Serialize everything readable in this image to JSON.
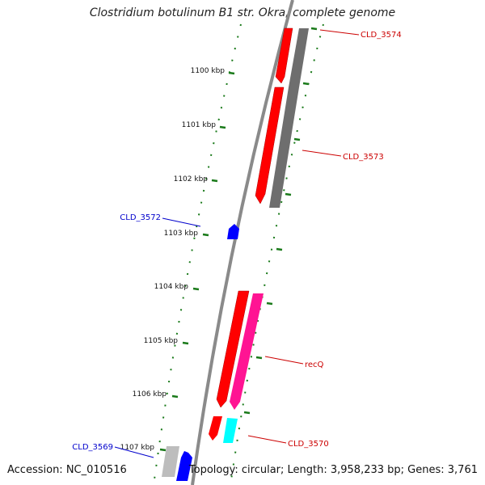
{
  "title": "Clostridium botulinum B1 str. Okra, complete genome",
  "accession": "Accession: NC_010516",
  "summary": "Topology: circular; Length: 3,958,233 bp; Genes: 3,761",
  "ticks": [
    "1100 kbp",
    "1101 kbp",
    "1102 kbp",
    "1103 kbp",
    "1104 kbp",
    "1105 kbp",
    "1106 kbp",
    "1107 kbp"
  ],
  "genes": [
    {
      "label": "CLD_3574",
      "color": "#cc0000"
    },
    {
      "label": "CLD_3573",
      "color": "#cc0000"
    },
    {
      "label": "CLD_3572",
      "color": "#0000cc"
    },
    {
      "label": "recQ",
      "color": "#cc0000"
    },
    {
      "label": "CLD_3570",
      "color": "#cc0000"
    },
    {
      "label": "CLD_3569",
      "color": "#0000cc"
    }
  ],
  "colors": {
    "backbone": "#888888",
    "tick": "#1a7a1a",
    "red": "#ff0000",
    "gray": "#6e6e6e",
    "blue": "#0000ff",
    "magenta": "#ff1493",
    "cyan": "#00ffff",
    "lightgray": "#bdbdbd"
  }
}
